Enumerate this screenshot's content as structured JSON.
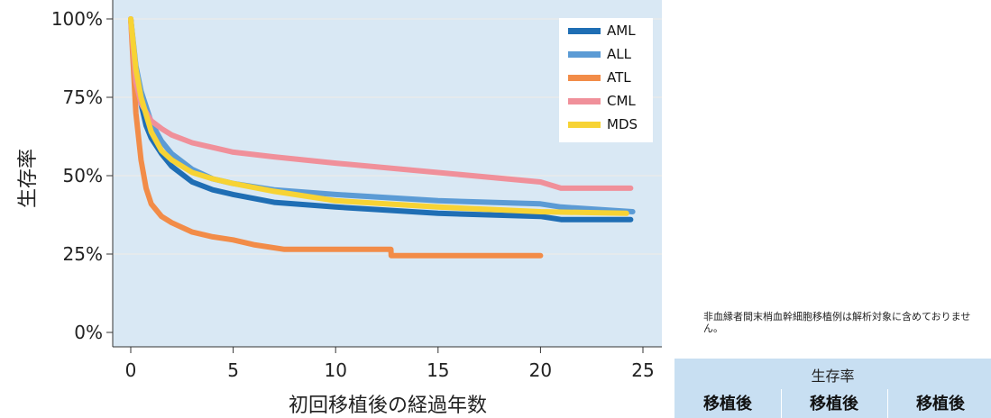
{
  "chart_data": {
    "type": "line",
    "title": "",
    "xlabel": "初回移植後の経過年数",
    "ylabel": "生存率",
    "xlim": [
      0,
      25
    ],
    "ylim": [
      0,
      100
    ],
    "xticks": [
      "0",
      "5",
      "10",
      "15",
      "20",
      "25"
    ],
    "yticks": [
      "0%",
      "25%",
      "50%",
      "75%",
      "100%"
    ],
    "grid": true,
    "legend_position": "top-right",
    "series": [
      {
        "name": "AML",
        "color": "#1f6eb4",
        "x": [
          0,
          0.25,
          0.5,
          0.75,
          1,
          1.5,
          2,
          3,
          4,
          5,
          7,
          10,
          15,
          20,
          21,
          24.4
        ],
        "y": [
          100,
          82,
          73,
          66,
          62,
          57,
          53,
          48,
          45.5,
          44,
          41.5,
          40,
          38,
          37,
          36,
          36
        ]
      },
      {
        "name": "ALL",
        "color": "#5b9bd5",
        "x": [
          0,
          0.25,
          0.5,
          1,
          1.5,
          2,
          3,
          4,
          5,
          7,
          10,
          15,
          20,
          21,
          24.5
        ],
        "y": [
          100,
          85,
          77,
          67,
          61,
          57,
          52,
          49,
          47.5,
          45.5,
          44,
          42,
          41,
          40,
          38.5
        ]
      },
      {
        "name": "ATL",
        "color": "#f28c48",
        "x": [
          0,
          0.25,
          0.5,
          0.75,
          1,
          1.5,
          2,
          3,
          4,
          5,
          6,
          7.5,
          10,
          12.7,
          12.71,
          20
        ],
        "y": [
          100,
          70,
          55,
          46,
          41,
          37,
          35,
          32,
          30.5,
          29.5,
          28,
          26.5,
          26.5,
          26.5,
          24.5,
          24.5
        ]
      },
      {
        "name": "CML",
        "color": "#f0909a",
        "x": [
          0,
          0.25,
          0.5,
          1,
          1.5,
          2,
          3,
          4,
          5,
          7,
          10,
          15,
          20,
          21,
          24.4
        ],
        "y": [
          100,
          80,
          73,
          67.5,
          65,
          63,
          60.5,
          59,
          57.5,
          56,
          54,
          51,
          48,
          46,
          46
        ]
      },
      {
        "name": "MDS",
        "color": "#f7d334",
        "x": [
          0,
          0.25,
          0.5,
          1,
          1.5,
          2,
          3,
          4,
          5,
          7,
          10,
          15,
          20,
          24.2
        ],
        "y": [
          100,
          84,
          75,
          64,
          58,
          55,
          51,
          49,
          47.5,
          45,
          42,
          40,
          38.5,
          38
        ]
      }
    ]
  },
  "note": "非血縁者間末梢血幹細胞移植例は解析対象に含めておりません。",
  "table": {
    "title": "生存率",
    "columns": [
      "移植後",
      "移植後",
      "移植後"
    ]
  }
}
